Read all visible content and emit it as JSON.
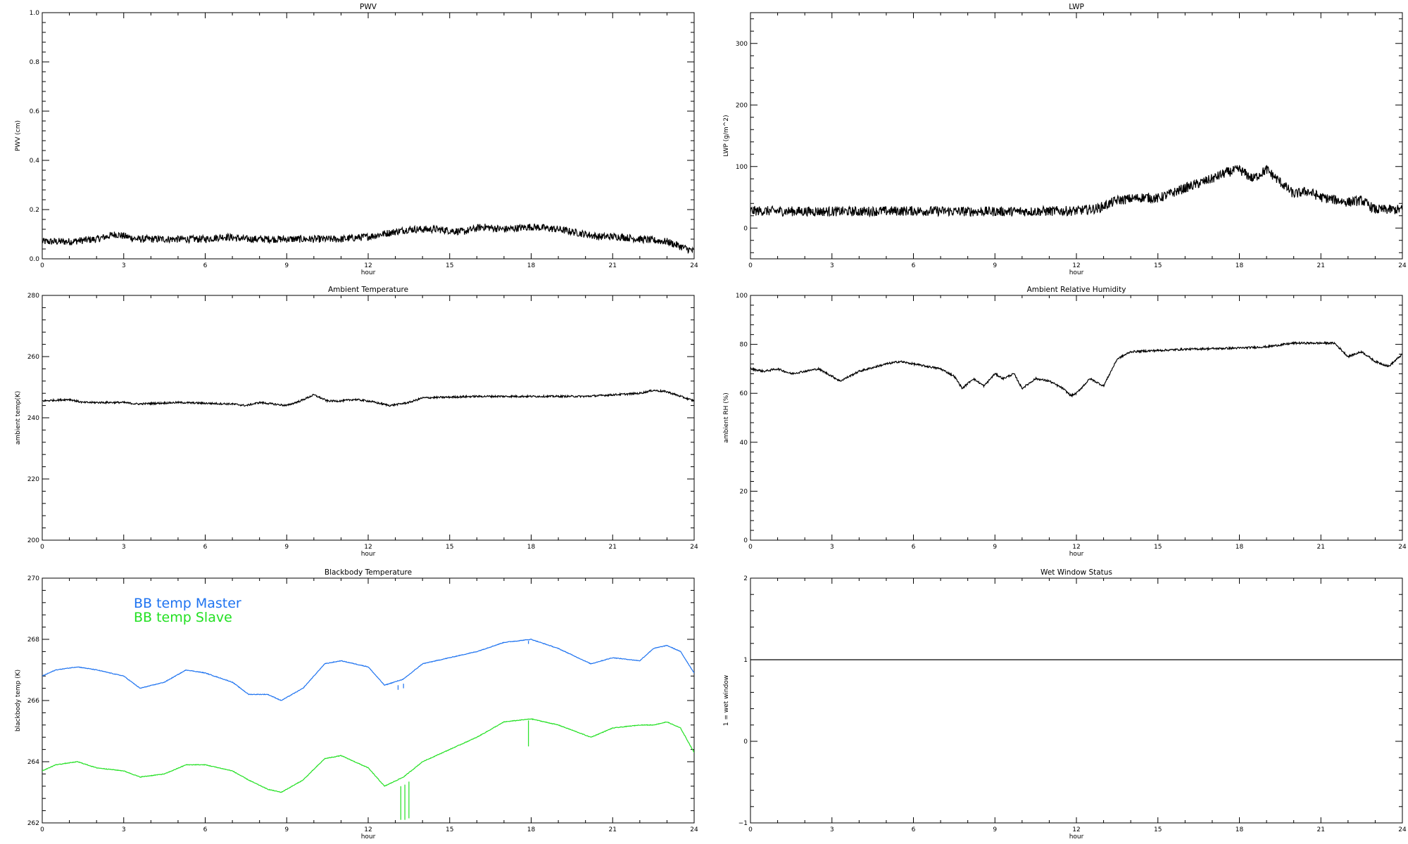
{
  "chart_data": [
    {
      "type": "line",
      "title": "PWV",
      "xlabel": "hour",
      "ylabel": "PWV (cm)",
      "xlim": [
        0,
        24
      ],
      "ylim": [
        0.0,
        1.0
      ],
      "x_ticks": [
        0,
        3,
        6,
        9,
        12,
        15,
        18,
        21,
        24
      ],
      "y_ticks": [
        "0.0",
        "0.2",
        "0.4",
        "0.6",
        "0.8",
        "1.0"
      ],
      "y_tick_values": [
        0.0,
        0.2,
        0.4,
        0.6,
        0.8,
        1.0
      ],
      "noise": 0.015,
      "series": [
        {
          "color": "#000000",
          "x": [
            0,
            1,
            2,
            2.7,
            3.5,
            5,
            6,
            6.7,
            7.5,
            9,
            10,
            11,
            12,
            12.5,
            13.5,
            14.5,
            15.5,
            16.2,
            17,
            18,
            19,
            20,
            20.5,
            21.2,
            22,
            23,
            24
          ],
          "y": [
            0.07,
            0.07,
            0.08,
            0.1,
            0.08,
            0.08,
            0.08,
            0.09,
            0.08,
            0.08,
            0.08,
            0.08,
            0.09,
            0.1,
            0.12,
            0.12,
            0.11,
            0.13,
            0.12,
            0.13,
            0.12,
            0.1,
            0.09,
            0.09,
            0.08,
            0.07,
            0.03
          ]
        }
      ]
    },
    {
      "type": "line",
      "title": "LWP",
      "xlabel": "hour",
      "ylabel": "LWP (g/m^2)",
      "xlim": [
        0,
        24
      ],
      "ylim": [
        -50,
        350
      ],
      "x_ticks": [
        0,
        3,
        6,
        9,
        12,
        15,
        18,
        21,
        24
      ],
      "y_ticks": [
        "0",
        "100",
        "200",
        "300"
      ],
      "y_tick_values": [
        0,
        100,
        200,
        300
      ],
      "noise": 8,
      "series": [
        {
          "color": "#000000",
          "x": [
            0,
            2,
            4,
            6,
            8,
            10,
            12,
            12.8,
            13.5,
            14.5,
            15,
            16,
            17,
            17.5,
            18,
            18.5,
            19,
            19.5,
            20,
            20.5,
            21,
            22,
            22.5,
            23,
            24
          ],
          "y": [
            28,
            27,
            27,
            28,
            27,
            27,
            28,
            32,
            45,
            50,
            48,
            65,
            80,
            90,
            95,
            80,
            95,
            75,
            55,
            60,
            50,
            42,
            45,
            30,
            30
          ]
        }
      ]
    },
    {
      "type": "line",
      "title": "Ambient Temperature",
      "xlabel": "hour",
      "ylabel": "ambient temp(K)",
      "xlim": [
        0,
        24
      ],
      "ylim": [
        200,
        280
      ],
      "x_ticks": [
        0,
        3,
        6,
        9,
        12,
        15,
        18,
        21,
        24
      ],
      "y_ticks": [
        "200",
        "220",
        "240",
        "260",
        "280"
      ],
      "y_tick_values": [
        200,
        220,
        240,
        260,
        280
      ],
      "noise": 0.3,
      "series": [
        {
          "color": "#000000",
          "x": [
            0,
            1,
            1.5,
            3,
            3.5,
            5,
            7,
            7.5,
            8,
            9,
            9.5,
            10,
            10.5,
            11,
            11.5,
            12,
            12.8,
            13.5,
            14,
            16,
            18,
            20,
            21,
            22,
            22.5,
            23,
            24
          ],
          "y": [
            245.5,
            246,
            245,
            245,
            244.5,
            245,
            244.5,
            244,
            245,
            244,
            245.5,
            247.5,
            245.5,
            245.5,
            246,
            245.5,
            244,
            245,
            246.5,
            247,
            247,
            247,
            247.5,
            248,
            249,
            248.5,
            245.5
          ]
        }
      ]
    },
    {
      "type": "line",
      "title": "Ambient Relative Humidity",
      "xlabel": "hour",
      "ylabel": "ambient RH (%)",
      "xlim": [
        0,
        24
      ],
      "ylim": [
        0,
        100
      ],
      "x_ticks": [
        0,
        3,
        6,
        9,
        12,
        15,
        18,
        21,
        24
      ],
      "y_ticks": [
        "0",
        "20",
        "40",
        "60",
        "80",
        "100"
      ],
      "y_tick_values": [
        0,
        20,
        40,
        60,
        80,
        100
      ],
      "noise": 0.4,
      "series": [
        {
          "color": "#000000",
          "x": [
            0,
            0.5,
            1,
            1.5,
            2.5,
            3,
            3.3,
            4,
            5,
            5.5,
            6.5,
            7,
            7.5,
            7.8,
            8.2,
            8.6,
            9,
            9.3,
            9.7,
            10,
            10.5,
            11,
            11.5,
            11.8,
            12,
            12.5,
            13,
            13.5,
            14,
            16,
            18,
            19,
            20,
            21,
            21.5,
            22,
            22.5,
            23,
            23.5,
            24
          ],
          "y": [
            70,
            69,
            70,
            68,
            70,
            67,
            65,
            69,
            72,
            73,
            71,
            70,
            67,
            62,
            66,
            63,
            68,
            66,
            68,
            62,
            66,
            65,
            62,
            59,
            60,
            66,
            63,
            74,
            77,
            78,
            78.5,
            79,
            80.5,
            80.5,
            80.5,
            75,
            77,
            73,
            71,
            76
          ]
        }
      ]
    },
    {
      "type": "line",
      "title": "Blackbody Temperature",
      "xlabel": "hour",
      "ylabel": "blackbody temp (K)",
      "xlim": [
        0,
        24
      ],
      "ylim": [
        262,
        270
      ],
      "x_ticks": [
        0,
        3,
        6,
        9,
        12,
        15,
        18,
        21,
        24
      ],
      "y_ticks": [
        "262",
        "264",
        "266",
        "268",
        "270"
      ],
      "y_tick_values": [
        262,
        264,
        266,
        268,
        270
      ],
      "legend": "top-left",
      "noise": 0.01,
      "series": [
        {
          "name": "BB temp Master",
          "color": "#1e73f0",
          "x": [
            0,
            0.5,
            1.3,
            2,
            3,
            3.6,
            4.5,
            5.3,
            6,
            7,
            7.6,
            8.3,
            8.8,
            9.6,
            10.4,
            11,
            11.5,
            12,
            12.6,
            13.3,
            14,
            15,
            16,
            17,
            18,
            19,
            20.2,
            21,
            22,
            22.5,
            23,
            23.5,
            24
          ],
          "y": [
            266.8,
            267.0,
            267.1,
            267.0,
            266.8,
            266.4,
            266.6,
            267.0,
            266.9,
            266.6,
            266.2,
            266.2,
            266.0,
            266.4,
            267.2,
            267.3,
            267.2,
            267.1,
            266.5,
            266.7,
            267.2,
            267.4,
            267.6,
            267.9,
            268.0,
            267.7,
            267.2,
            267.4,
            267.3,
            267.7,
            267.8,
            267.6,
            266.9
          ]
        },
        {
          "name": "BB temp Slave",
          "color": "#22e022",
          "x": [
            0,
            0.5,
            1.3,
            2,
            3,
            3.6,
            4.5,
            5.3,
            6,
            7,
            7.6,
            8.3,
            8.8,
            9.6,
            10.4,
            11,
            11.5,
            12,
            12.6,
            13.3,
            14,
            15,
            16,
            17,
            18,
            19,
            20.2,
            21,
            22,
            22.5,
            23,
            23.5,
            24
          ],
          "y": [
            263.7,
            263.9,
            264.0,
            263.8,
            263.7,
            263.5,
            263.6,
            263.9,
            263.9,
            263.7,
            263.4,
            263.1,
            263.0,
            263.4,
            264.1,
            264.2,
            264.0,
            263.8,
            263.2,
            263.5,
            264.0,
            264.4,
            264.8,
            265.3,
            265.4,
            265.2,
            264.8,
            265.1,
            265.2,
            265.2,
            265.3,
            265.1,
            264.3
          ]
        }
      ],
      "spikes": [
        {
          "series": 0,
          "x": 13.1,
          "y0": 266.5,
          "y1": 266.35
        },
        {
          "series": 0,
          "x": 13.3,
          "y0": 266.55,
          "y1": 266.4
        },
        {
          "series": 1,
          "x": 13.2,
          "y0": 263.2,
          "y1": 262.1
        },
        {
          "series": 1,
          "x": 13.35,
          "y0": 263.25,
          "y1": 262.1
        },
        {
          "series": 1,
          "x": 13.5,
          "y0": 263.35,
          "y1": 262.15
        },
        {
          "series": 1,
          "x": 17.9,
          "y0": 265.35,
          "y1": 264.5
        },
        {
          "series": 0,
          "x": 17.9,
          "y0": 267.95,
          "y1": 267.85
        }
      ]
    },
    {
      "type": "line",
      "title": "Wet Window Status",
      "xlabel": "hour",
      "ylabel": "1 = wet window",
      "xlim": [
        0,
        24
      ],
      "ylim": [
        -1,
        2
      ],
      "x_ticks": [
        0,
        3,
        6,
        9,
        12,
        15,
        18,
        21,
        24
      ],
      "y_ticks": [
        "−1",
        "0",
        "1",
        "2"
      ],
      "y_tick_values": [
        -1,
        0,
        1,
        2
      ],
      "noise": 0,
      "series": [
        {
          "color": "#000000",
          "x": [
            0,
            24
          ],
          "y": [
            1,
            1
          ]
        }
      ]
    }
  ]
}
